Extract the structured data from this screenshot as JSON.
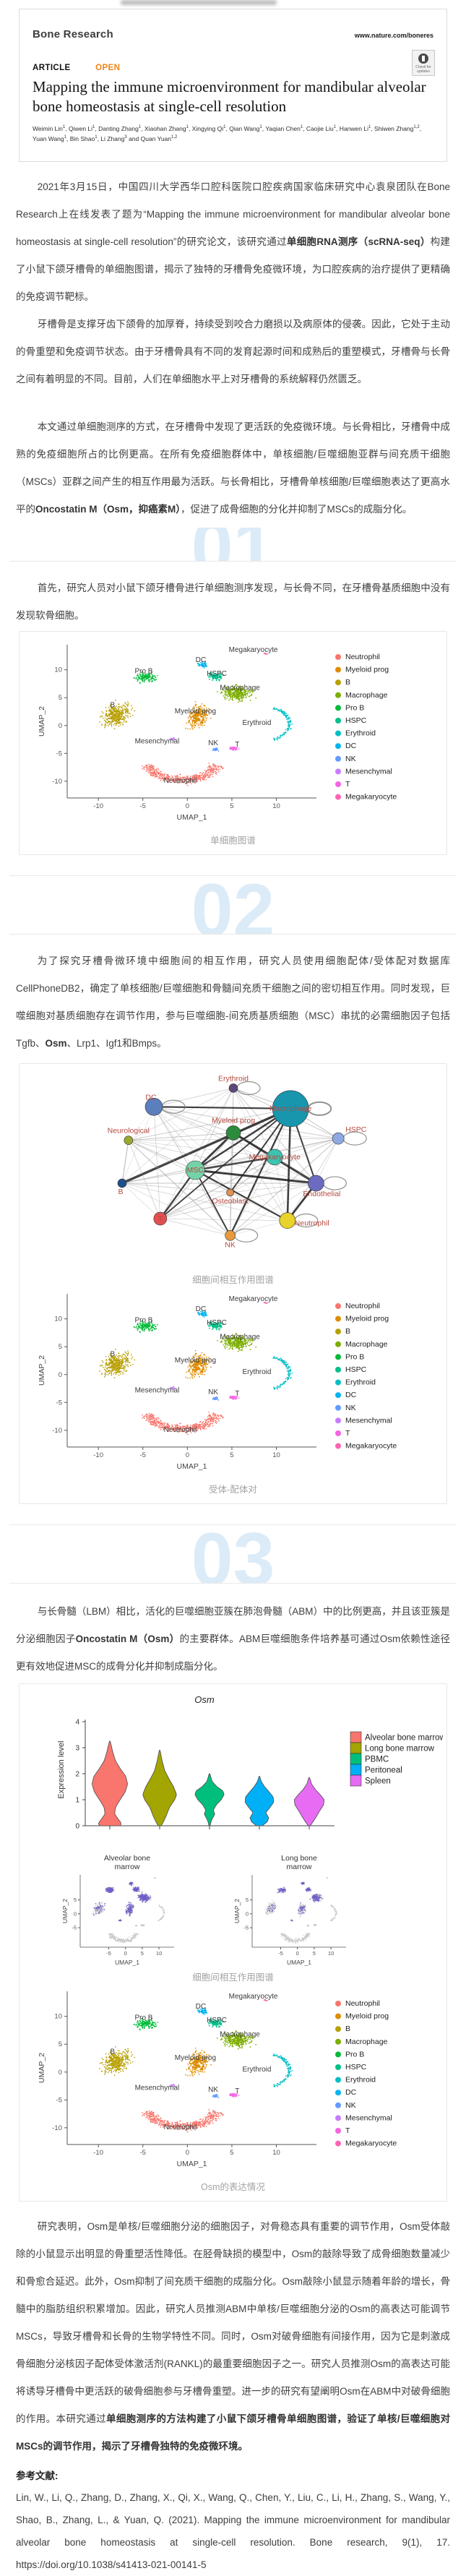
{
  "header": {
    "journal": "Bone Research",
    "site": "www.nature.com/boneres",
    "badge_label": "Check for updates",
    "article_label": "ARTICLE",
    "open_label": "OPEN",
    "title": "Mapping the immune microenvironment for mandibular alveolar bone homeostasis at single-cell resolution",
    "authors": [
      {
        "name": "Weimin Lin",
        "sup": "1"
      },
      {
        "name": "Qiwen Li",
        "sup": "1"
      },
      {
        "name": "Danting Zhang",
        "sup": "1"
      },
      {
        "name": "Xiaohan Zhang",
        "sup": "1"
      },
      {
        "name": "Xingying Qi",
        "sup": "1"
      },
      {
        "name": "Qian Wang",
        "sup": "1"
      },
      {
        "name": "Yaqian Chen",
        "sup": "1"
      },
      {
        "name": "Caojie Liu",
        "sup": "1"
      },
      {
        "name": "Hanwen Li",
        "sup": "1"
      },
      {
        "name": "Shiwen Zhang",
        "sup": "1,2"
      },
      {
        "name": "Yuan Wang",
        "sup": "1"
      },
      {
        "name": "Bin Shao",
        "sup": "1"
      },
      {
        "name": "Li Zhang",
        "sup": "3"
      },
      {
        "name": "Quan Yuan",
        "sup": "1,2"
      }
    ],
    "author_joiner": " and "
  },
  "section_numbers": [
    "01",
    "02",
    "03"
  ],
  "paragraphs": {
    "p1": [
      {
        "t": "2021年3月15日，中国四川大学西华口腔科医院口腔疾病国家临床研究中心袁泉团队在Bone Research上在线发表了题为“Mapping the immune microenvironment for mandibular alveolar bone homeostasis at single-cell resolution”的研究论文，该研究通过"
      },
      {
        "t": "单细胞RNA测序（scRNA-seq）",
        "b": true
      },
      {
        "t": "构建了小鼠下颌牙槽骨的单细胞图谱，揭示了独特的牙槽骨免疫微环境，为口腔疾病的治疗提供了更精确的免疫调节靶标。"
      }
    ],
    "p2": [
      {
        "t": "牙槽骨是支撑牙齿下颌骨的加厚脊，持续受到咬合力磨损以及病原体的侵袭。因此，它处于主动的骨重塑和免疫调节状态。由于牙槽骨具有不同的发育起源时间和成熟后的重塑模式，牙槽骨与长骨之间有着明显的不同。目前，人们在单细胞水平上对牙槽骨的系统解释仍然匮乏。"
      }
    ],
    "p3": [
      {
        "t": "本文通过单细胞测序的方式，在牙槽骨中发现了更活跃的免疫微环境。与长骨相比，牙槽骨中成熟的免疫细胞所占的比例更高。在所有免疫细胞群体中，单核细胞/巨噬细胞亚群与间充质干细胞（MSCs）亚群之间产生的相互作用最为活跃。与长骨相比，牙槽骨单核细胞/巨噬细胞表达了更高水平的"
      },
      {
        "t": "Oncostatin M（Osm，抑癌素M）",
        "b": true
      },
      {
        "t": "，促进了成骨细胞的分化并抑制了MSCs的成脂分化。"
      }
    ],
    "s1": [
      {
        "t": "首先，研究人员对小鼠下颌牙槽骨进行单细胞测序发现，与长骨不同，在牙槽骨基质细胞中没有发现软骨细胞。"
      }
    ],
    "s2": [
      {
        "t": "为了探究牙槽骨微环境中细胞间的相互作用，研究人员使用细胞配体/受体配对数据库CellPhoneDB2，确定了单核细胞/巨噬细胞和骨髓间充质干细胞之间的密切相互作用。同时发现，巨噬细胞对基质细胞存在调节作用，参与巨噬细胞-间充质基质细胞（MSC）串扰的必需细胞因子包括Tgfb、"
      },
      {
        "t": "Osm",
        "b": true
      },
      {
        "t": "、Lrp1、Igf1和Bmps。"
      }
    ],
    "s3": [
      {
        "t": "与长骨髓（LBM）相比，活化的巨噬细胞亚簇在肺泡骨髓（ABM）中的比例更高，并且该亚簇是分泌细胞因子"
      },
      {
        "t": "Oncostatin M（Osm）",
        "b": true
      },
      {
        "t": "的主要群体。ABM巨噬细胞条件培养基可通过Osm依赖性途径更有效地促进MSC的成骨分化并抑制成脂分化。"
      }
    ],
    "discussion": [
      {
        "t": "研究表明，Osm是单核/巨噬细胞分泌的细胞因子，对骨稳态具有重要的调节作用，Osm受体敲除的小鼠显示出明显的骨重塑活性降低。在胫骨缺损的模型中，Osm的敲除导致了成骨细胞数量减少和骨愈合延迟。此外，Osm抑制了间充质干细胞的成脂分化。Osm敲除小鼠显示随着年龄的增长，骨髓中的脂肪组织积累增加。因此，研究人员推测ABM中单核/巨噬细胞分泌的Osm的高表达可能调节MSCs，导致牙槽骨和长骨的生物学特性不同。同时，Osm对破骨细胞有间接作用，因为它是刺激成骨细胞分泌核因子配体受体激活剂(RANKL)的最重要细胞因子之一。研究人员推测Osm的高表达可能将诱导牙槽骨中更活跃的破骨细胞参与牙槽骨重塑。进一步的研究有望阐明Osm在ABM中对破骨细胞的作用。本研究通过"
      },
      {
        "t": "单细胞测序的方法构建了小鼠下颌牙槽骨单细胞图谱，验证了单核/巨噬细胞对MSCs的调节作用，揭示了牙槽骨独特的免疫微环境。",
        "b": true
      }
    ]
  },
  "figures": {
    "fig1_caption": "单细胞图谱",
    "fig2_caption_network": "细胞间相互作用图谱",
    "fig2_caption_umap": "受体-配体对",
    "fig3_caption_mid": "细胞间相互作用图谱",
    "fig3_caption_end": "Osm的表达情况"
  },
  "references": {
    "heading": "参考文献:",
    "text": "Lin, W., Li, Q., Zhang, D., Zhang, X., Qi, X., Wang, Q., Chen, Y., Liu, C., Li, H., Zhang, S., Wang, Y., Shao, B., Zhang, L., & Yuan, Q. (2021). Mapping the immune microenvironment for mandibular alveolar bone homeostasis at single-cell resolution. Bone research, 9(1), 17. https://doi.org/10.1038/s41413-021-00141-5"
  },
  "chart_data": {
    "umap": {
      "type": "scatter",
      "xlabel": "UMAP_1",
      "ylabel": "UMAP_2",
      "xticks": [
        -10,
        -5,
        0,
        5,
        10
      ],
      "yticks": [
        -10,
        -5,
        0,
        5,
        10
      ],
      "xlim": [
        -13.5,
        14.5
      ],
      "ylim": [
        -13,
        14.5
      ],
      "legend_position": "right",
      "clusters": [
        {
          "name": "Neutrophil",
          "color": "#F8766D",
          "center": [
            -0.6,
            -9.2
          ],
          "label_pos": [
            -0.8,
            -10.3
          ]
        },
        {
          "name": "Myeloid prog",
          "color": "#DE8C00",
          "center": [
            1.3,
            1.8
          ],
          "label_pos": [
            0.9,
            2.2
          ]
        },
        {
          "name": "B",
          "color": "#B79F00",
          "center": [
            -8,
            1.8
          ],
          "label_pos": [
            -8.4,
            3.3
          ]
        },
        {
          "name": "Macrophage",
          "color": "#7CAE00",
          "center": [
            5.6,
            5.8
          ],
          "label_pos": [
            5.9,
            6.4
          ]
        },
        {
          "name": "Pro B",
          "color": "#00BA38",
          "center": [
            -4.6,
            8.6
          ],
          "label_pos": [
            -4.9,
            9.4
          ]
        },
        {
          "name": "HSPC",
          "color": "#00C08B",
          "center": [
            3.2,
            8.8
          ],
          "label_pos": [
            3.3,
            8.9
          ]
        },
        {
          "name": "Erythroid",
          "color": "#00BFC4",
          "center": [
            10.2,
            0.3
          ],
          "label_pos": [
            7.8,
            0.1
          ]
        },
        {
          "name": "DC",
          "color": "#00B4F0",
          "center": [
            1.7,
            10.8
          ],
          "label_pos": [
            1.5,
            11.4
          ]
        },
        {
          "name": "NK",
          "color": "#619CFF",
          "center": [
            3.2,
            -4.3
          ],
          "label_pos": [
            2.9,
            -3.5
          ]
        },
        {
          "name": "Mesenchymal",
          "color": "#C77CFF",
          "center": [
            -1.6,
            -2.4
          ],
          "label_pos": [
            -3.4,
            -3.2
          ]
        },
        {
          "name": "T",
          "color": "#F564E3",
          "center": [
            5.2,
            -4.1
          ],
          "label_pos": [
            5.6,
            -3.8
          ]
        },
        {
          "name": "Megakaryocyte",
          "color": "#FF64B0",
          "center": [
            8.8,
            12.9
          ],
          "label_pos": [
            7.4,
            13.2
          ]
        }
      ]
    },
    "network": {
      "type": "network",
      "nodes": [
        {
          "name": "Erythroid",
          "color": "#5c4a7a",
          "size": 6,
          "pos": [
            0.5,
            0.06
          ]
        },
        {
          "name": "DC",
          "color": "#5b7fbd",
          "size": 12,
          "pos": [
            0.25,
            0.16
          ]
        },
        {
          "name": "Macrophage",
          "color": "#1796ae",
          "size": 25,
          "pos": [
            0.68,
            0.17
          ]
        },
        {
          "name": "Myeloid prog",
          "color": "#2e8b3d",
          "size": 10,
          "pos": [
            0.5,
            0.3
          ]
        },
        {
          "name": "Neurological",
          "color": "#9aa832",
          "size": 6,
          "pos": [
            0.17,
            0.34
          ]
        },
        {
          "name": "HSPC",
          "color": "#8ea9e2",
          "size": 8,
          "pos": [
            0.83,
            0.33
          ]
        },
        {
          "name": "Megakaryocyte",
          "color": "#3cc3b1",
          "size": 11,
          "pos": [
            0.63,
            0.43
          ]
        },
        {
          "name": "MSC",
          "color": "#74d2a8",
          "size": 13,
          "pos": [
            0.38,
            0.5
          ]
        },
        {
          "name": "B",
          "color": "#1f4e8c",
          "size": 6,
          "pos": [
            0.15,
            0.57
          ]
        },
        {
          "name": "Endothelial",
          "color": "#6b6bc0",
          "size": 11,
          "pos": [
            0.76,
            0.57
          ]
        },
        {
          "name": "Osteoblast",
          "color": "#e09050",
          "size": 5,
          "pos": [
            0.49,
            0.62
          ]
        },
        {
          "name": "T",
          "color": "#e05050",
          "size": 9,
          "pos": [
            0.27,
            0.76
          ]
        },
        {
          "name": "NK",
          "color": "#e89a3c",
          "size": 7,
          "pos": [
            0.49,
            0.85
          ]
        },
        {
          "name": "Neutrophil",
          "color": "#e8d22c",
          "size": 11,
          "pos": [
            0.67,
            0.77
          ]
        }
      ],
      "strong_edges": [
        [
          "MSC",
          "Macrophage"
        ],
        [
          "MSC",
          "Endothelial"
        ],
        [
          "MSC",
          "Neutrophil"
        ],
        [
          "MSC",
          "NK"
        ],
        [
          "MSC",
          "T"
        ],
        [
          "MSC",
          "Myeloid prog"
        ],
        [
          "MSC",
          "Megakaryocyte"
        ],
        [
          "Macrophage",
          "Endothelial"
        ],
        [
          "Macrophage",
          "T"
        ],
        [
          "Macrophage",
          "NK"
        ],
        [
          "Macrophage",
          "Osteoblast"
        ],
        [
          "Macrophage",
          "B"
        ],
        [
          "Macrophage",
          "Neutrophil"
        ],
        [
          "DC",
          "Macrophage"
        ],
        [
          "Myeloid prog",
          "Endothelial"
        ],
        [
          "Endothelial",
          "Neutrophil"
        ]
      ],
      "self_loops": [
        "Macrophage",
        "HSPC",
        "Endothelial",
        "Neutrophil",
        "NK",
        "DC",
        "Erythroid"
      ]
    },
    "violin": {
      "type": "violin",
      "title": "Osm",
      "ylabel": "Expression level",
      "yticks": [
        0,
        1,
        2,
        3,
        4
      ],
      "categories": [
        "Alveolar bone marrow",
        "Long bone marrow",
        "PBMC",
        "Peritoneal",
        "Spleen"
      ],
      "colors": [
        "#F8766D",
        "#A3A500",
        "#00BF7D",
        "#00B0F6",
        "#E76BF3"
      ],
      "max_values": [
        3.25,
        2.9,
        2.0,
        1.9,
        1.85
      ],
      "peak_expression": [
        1.7,
        1.2,
        1.2,
        1.0,
        1.0
      ]
    },
    "feature": {
      "type": "scatter",
      "panels": [
        {
          "title_line1": "Alveolar bone",
          "title_line2": "marrow",
          "expressing_fraction": "high"
        },
        {
          "title_line1": "Long bone",
          "title_line2": "marrow",
          "expressing_fraction": "low"
        }
      ],
      "xlabel": "UMAP_1",
      "ylabel": "UMAP_2",
      "xticks": [
        -5,
        0,
        5,
        10
      ],
      "yticks": [
        -5,
        0,
        5
      ],
      "background_color": "#c8c8c8",
      "expressing_color": "#6f5fc8",
      "gene": "Osm"
    }
  }
}
